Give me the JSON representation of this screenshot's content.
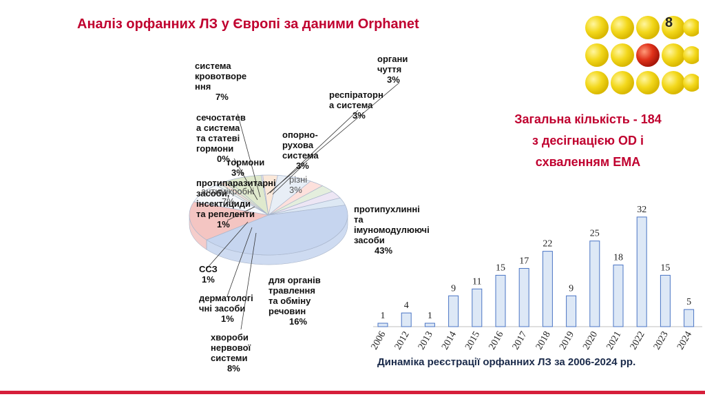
{
  "slide": {
    "title": "Аналіз орфанних ЛЗ у Європі за даними Orphanet",
    "page_number": "8",
    "summary": "Загальна кількість  - 184\nз десігнацією OD і\nсхваленням ЕМА",
    "accent_color": "#c0002f",
    "bottom_bar_color": "#d61f3b"
  },
  "pie_labels": [
    {
      "text": "система\nкровотворе\nння",
      "pct": "7%"
    },
    {
      "text": "органи\nчуття",
      "pct": "3%"
    },
    {
      "text": "респіраторн\nа система",
      "pct": "3%"
    },
    {
      "text": "сечостатев\nа система\nта статеві\nгормони",
      "pct": "0%"
    },
    {
      "text": "гормони",
      "pct": "3%"
    },
    {
      "text": "опорно-\nрухова\nсистема",
      "pct": "3%"
    },
    {
      "text": "різні",
      "pct": "3%"
    },
    {
      "text": "протипаразитарні засоби, інсектициди та репеленти",
      "pct": "1%"
    },
    {
      "text": "антимікробні",
      "pct": "7%"
    },
    {
      "text": "протипухлинні та імуномодулюючі засоби",
      "pct": "43%"
    },
    {
      "text": "ССЗ",
      "pct": "1%"
    },
    {
      "text": "для органів\nтравлення\nта обміну\nречовин",
      "pct": "16%"
    },
    {
      "text": "дерматологі\nчні засоби",
      "pct": "1%"
    },
    {
      "text": "хвороби\nнервової\nсистеми",
      "pct": "8%"
    }
  ],
  "chart_data": [
    {
      "type": "pie",
      "title": "",
      "slices": [
        {
          "label": "протипухлинні та імуномодулюючі засоби",
          "value": 43,
          "color": "#c6d5ef"
        },
        {
          "label": "для органів травлення та обміну речовин",
          "value": 16,
          "color": "#f4c5c2"
        },
        {
          "label": "хвороби нервової системи",
          "value": 8,
          "color": "#f6f8fb"
        },
        {
          "label": "дерматологічні засоби",
          "value": 1,
          "color": "#ecf1ea"
        },
        {
          "label": "ССЗ",
          "value": 1,
          "color": "#f7e4d6"
        },
        {
          "label": "протипаразитарні засоби, інсектициди та репеленти",
          "value": 1,
          "color": "#e5eccf"
        },
        {
          "label": "антимікробні",
          "value": 7,
          "color": "#dfe9cd"
        },
        {
          "label": "сечостатева система та статеві гормони",
          "value": 0,
          "color": "#eee7f3"
        },
        {
          "label": "гормони",
          "value": 3,
          "color": "#fbe8d9"
        },
        {
          "label": "система кровотворення",
          "value": 7,
          "color": "#e8eef6"
        },
        {
          "label": "органи чуття",
          "value": 3,
          "color": "#fde0dc"
        },
        {
          "label": "респіраторна система",
          "value": 3,
          "color": "#e4eedd"
        },
        {
          "label": "опорно-рухова система",
          "value": 3,
          "color": "#ede6f4"
        },
        {
          "label": "різні",
          "value": 3,
          "color": "#dde8f4"
        }
      ]
    },
    {
      "type": "bar",
      "title": "Динаміка реєстрації орфанних ЛЗ  за 2006-2024 рр.",
      "categories": [
        "2006",
        "2012",
        "2013",
        "2014",
        "2015",
        "2016",
        "2017",
        "2018",
        "2019",
        "2020",
        "2021",
        "2022",
        "2023",
        "2024"
      ],
      "values": [
        1,
        4,
        1,
        9,
        11,
        15,
        17,
        22,
        9,
        25,
        18,
        32,
        15,
        5
      ],
      "ylim": [
        0,
        35
      ],
      "grid": false,
      "bar_fill": "#dde8f6",
      "bar_stroke": "#4a74c4"
    }
  ]
}
